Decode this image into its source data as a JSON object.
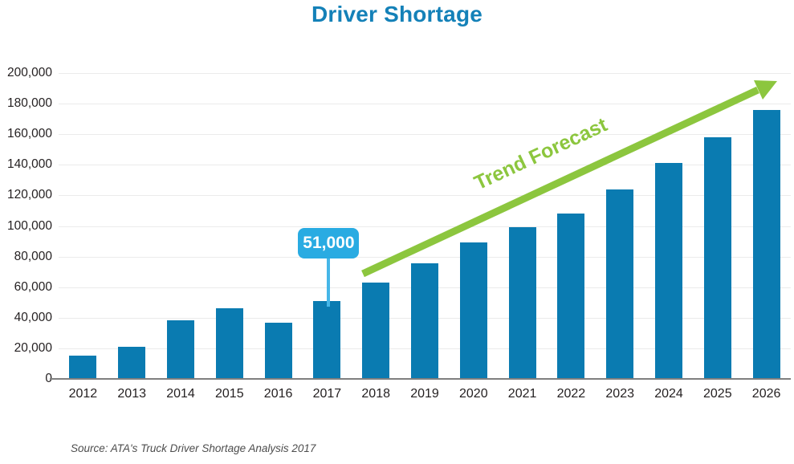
{
  "title": {
    "text": "Driver Shortage",
    "color": "#1481b8"
  },
  "chart_data": {
    "type": "bar",
    "title": "Driver Shortage",
    "categories": [
      "2012",
      "2013",
      "2014",
      "2015",
      "2016",
      "2017",
      "2018",
      "2019",
      "2020",
      "2021",
      "2022",
      "2023",
      "2024",
      "2025",
      "2026"
    ],
    "values": [
      15000,
      21000,
      38500,
      46000,
      36500,
      51000,
      63000,
      75500,
      89500,
      99000,
      108000,
      124000,
      141000,
      158000,
      176000
    ],
    "xlabel": "",
    "ylabel": "",
    "ylim": [
      0,
      200000
    ],
    "ytick_interval": 20000,
    "ytick_labels": [
      "0",
      "20,000",
      "40,000",
      "60,000",
      "80,000",
      "100,000",
      "120,000",
      "140,000",
      "160,000",
      "180,000",
      "200,000"
    ],
    "grid": "horizontal",
    "legend": "none",
    "bar_color": "#0a7bb1",
    "annotations": [
      {
        "type": "callout",
        "category": "2017",
        "text": "51,000",
        "bg_color": "#29abe2",
        "text_color": "#ffffff"
      },
      {
        "type": "trend_arrow",
        "label": "Trend Forecast",
        "color": "#8cc63e"
      }
    ]
  },
  "source": {
    "text": "Source: ATA's Truck Driver Shortage Analysis 2017"
  }
}
